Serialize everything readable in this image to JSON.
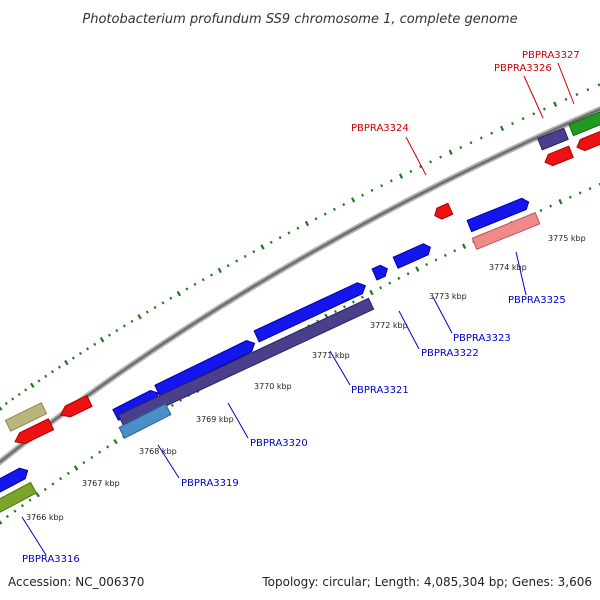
{
  "title": "Photobacterium profundum SS9 chromosome 1, complete genome",
  "footer": {
    "accession": "Accession: NC_006370",
    "summary": "Topology: circular; Length: 4,085,304 bp; Genes: 3,606"
  },
  "colors": {
    "backbone": "#8c8c8c",
    "tick": "#1e7a1e",
    "forward_label": "#0000cc",
    "reverse_label": "#cc0000",
    "label_line_forward": "#0000cc",
    "label_line_reverse": "#cc0000"
  },
  "ticks": [
    {
      "label": "3766 kbp"
    },
    {
      "label": "3767 kbp"
    },
    {
      "label": "3768 kbp"
    },
    {
      "label": "3769 kbp"
    },
    {
      "label": "3770 kbp"
    },
    {
      "label": "3771 kbp"
    },
    {
      "label": "3772 kbp"
    },
    {
      "label": "3773 kbp"
    },
    {
      "label": "3774 kbp"
    },
    {
      "label": "3775 kbp"
    }
  ],
  "gene_labels": [
    {
      "id": "PBPRA3316",
      "strand": "forward"
    },
    {
      "id": "PBPRA3319",
      "strand": "forward"
    },
    {
      "id": "PBPRA3320",
      "strand": "forward"
    },
    {
      "id": "PBPRA3321",
      "strand": "forward"
    },
    {
      "id": "PBPRA3322",
      "strand": "forward"
    },
    {
      "id": "PBPRA3323",
      "strand": "forward"
    },
    {
      "id": "PBPRA3325",
      "strand": "forward"
    },
    {
      "id": "PBPRA3324",
      "strand": "reverse"
    },
    {
      "id": "PBPRA3326",
      "strand": "reverse"
    },
    {
      "id": "PBPRA3327",
      "strand": "reverse"
    }
  ]
}
